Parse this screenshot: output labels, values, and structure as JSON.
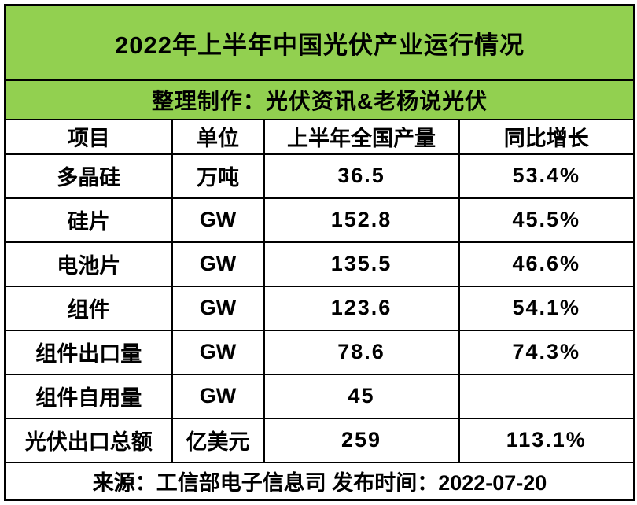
{
  "table": {
    "title": "2022年上半年中国光伏产业运行情况",
    "subtitle": "整理制作：光伏资讯&老杨说光伏",
    "columns": [
      "项目",
      "单位",
      "上半年全国产量",
      "同比增长"
    ],
    "rows": [
      {
        "item": "多晶硅",
        "unit": "万吨",
        "output": "36.5",
        "growth": "53.4%"
      },
      {
        "item": "硅片",
        "unit": "GW",
        "output": "152.8",
        "growth": "45.5%"
      },
      {
        "item": "电池片",
        "unit": "GW",
        "output": "135.5",
        "growth": "46.6%"
      },
      {
        "item": "组件",
        "unit": "GW",
        "output": "123.6",
        "growth": "54.1%"
      },
      {
        "item": "组件出口量",
        "unit": "GW",
        "output": "78.6",
        "growth": "74.3%"
      },
      {
        "item": "组件自用量",
        "unit": "GW",
        "output": "45",
        "growth": ""
      },
      {
        "item": "光伏出口总额",
        "unit": "亿美元",
        "output": "259",
        "growth": "113.1%"
      }
    ],
    "footer": "来源：工信部电子信息司 发布时间：2022-07-20"
  },
  "colors": {
    "band_green": "#92d050",
    "border": "#000000",
    "text": "#000000",
    "background": "#ffffff"
  },
  "chart_data": {
    "type": "table",
    "title": "2022年上半年中国光伏产业运行情况",
    "subtitle": "整理制作：光伏资讯&老杨说光伏",
    "columns": [
      "项目",
      "单位",
      "上半年全国产量",
      "同比增长"
    ],
    "rows": [
      [
        "多晶硅",
        "万吨",
        36.5,
        "53.4%"
      ],
      [
        "硅片",
        "GW",
        152.8,
        "45.5%"
      ],
      [
        "电池片",
        "GW",
        135.5,
        "46.6%"
      ],
      [
        "组件",
        "GW",
        123.6,
        "54.1%"
      ],
      [
        "组件出口量",
        "GW",
        78.6,
        "74.3%"
      ],
      [
        "组件自用量",
        "GW",
        45,
        ""
      ],
      [
        "光伏出口总额",
        "亿美元",
        259,
        "113.1%"
      ]
    ],
    "source": "来源：工信部电子信息司",
    "publish_date": "2022-07-20"
  }
}
